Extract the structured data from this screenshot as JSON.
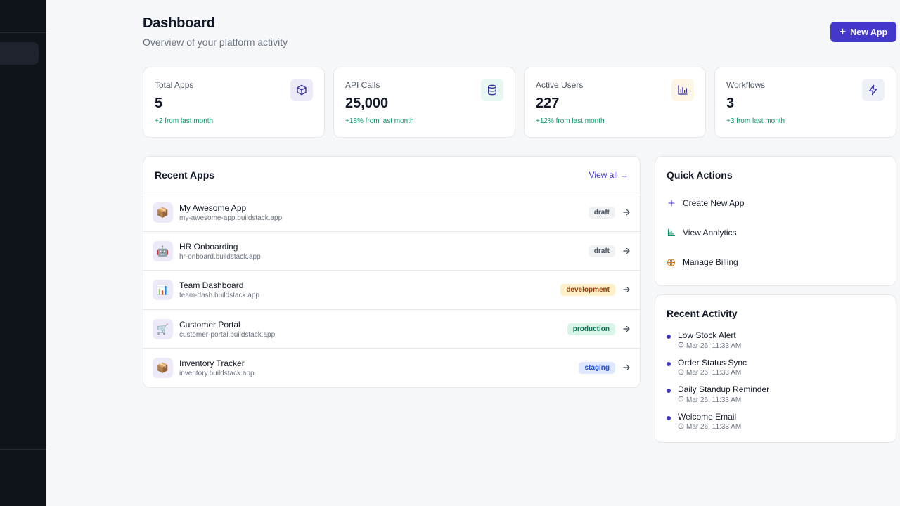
{
  "header": {
    "title": "Dashboard",
    "subtitle": "Overview of your platform activity",
    "new_app_label": "New App"
  },
  "stats": [
    {
      "label": "Total Apps",
      "value": "5",
      "change": "+2 from last month",
      "icon": "box-icon",
      "icon_bg": "#ebeaf6",
      "icon_color": "#3730a3"
    },
    {
      "label": "API Calls",
      "value": "25,000",
      "change": "+18% from last month",
      "icon": "database-icon",
      "icon_bg": "#e8f7f1",
      "icon_color": "#3730a3"
    },
    {
      "label": "Active Users",
      "value": "227",
      "change": "+12% from last month",
      "icon": "bar-chart-icon",
      "icon_bg": "#fdf5e6",
      "icon_color": "#3730a3"
    },
    {
      "label": "Workflows",
      "value": "3",
      "change": "+3 from last month",
      "icon": "zap-icon",
      "icon_bg": "#eef0f7",
      "icon_color": "#3730a3"
    }
  ],
  "recent_apps": {
    "title": "Recent Apps",
    "view_all_label": "View all →",
    "items": [
      {
        "name": "My Awesome App",
        "url": "my-awesome-app.buildstack.app",
        "status": "draft",
        "emoji": "📦"
      },
      {
        "name": "HR Onboarding",
        "url": "hr-onboard.buildstack.app",
        "status": "draft",
        "emoji": "🤖"
      },
      {
        "name": "Team Dashboard",
        "url": "team-dash.buildstack.app",
        "status": "development",
        "emoji": "📊"
      },
      {
        "name": "Customer Portal",
        "url": "customer-portal.buildstack.app",
        "status": "production",
        "emoji": "🛒"
      },
      {
        "name": "Inventory Tracker",
        "url": "inventory.buildstack.app",
        "status": "staging",
        "emoji": "📦"
      }
    ]
  },
  "status_colors": {
    "draft": {
      "bg": "#f1f2f4",
      "fg": "#4b5563"
    },
    "development": {
      "bg": "#fdefc7",
      "fg": "#92400e"
    },
    "production": {
      "bg": "#d9f5e8",
      "fg": "#047857"
    },
    "staging": {
      "bg": "#dde7fd",
      "fg": "#1d4ed8"
    }
  },
  "quick_actions": {
    "title": "Quick Actions",
    "items": [
      {
        "label": "Create New App",
        "icon": "plus-icon",
        "color": "#4338ca"
      },
      {
        "label": "View Analytics",
        "icon": "bar-chart-icon",
        "color": "#059669"
      },
      {
        "label": "Manage Billing",
        "icon": "globe-icon",
        "color": "#d97706"
      }
    ]
  },
  "recent_activity": {
    "title": "Recent Activity",
    "items": [
      {
        "name": "Low Stock Alert",
        "time": "Mar 26, 11:33 AM"
      },
      {
        "name": "Order Status Sync",
        "time": "Mar 26, 11:33 AM"
      },
      {
        "name": "Daily Standup Reminder",
        "time": "Mar 26, 11:33 AM"
      },
      {
        "name": "Welcome Email",
        "time": "Mar 26, 11:33 AM"
      }
    ]
  },
  "colors": {
    "accent": "#4338ca",
    "sidebar_bg": "#0f131a",
    "positive": "#059669"
  }
}
